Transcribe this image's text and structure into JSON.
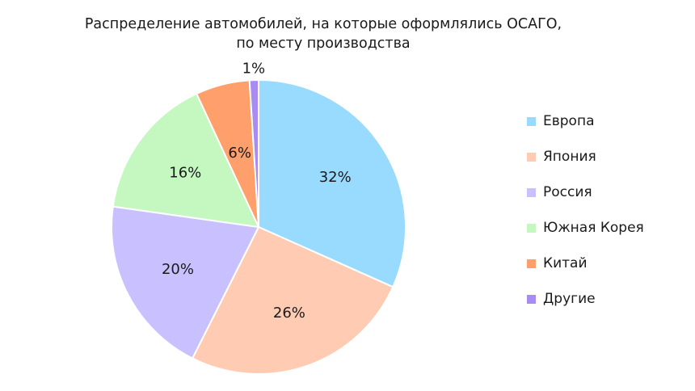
{
  "title_line1": "Распределение автомобилей, на которые оформлялись ОСАГО,",
  "title_line2": "по месту производства",
  "chart_data": {
    "type": "pie",
    "title": "Распределение автомобилей, на которые оформлялись ОСАГО, по месту производства",
    "legend_position": "right",
    "slices": [
      {
        "label": "Европа",
        "value": 32,
        "value_label": "32%",
        "color": "#99daff"
      },
      {
        "label": "Япония",
        "value": 26,
        "value_label": "26%",
        "color": "#ffcbb2"
      },
      {
        "label": "Россия",
        "value": 20,
        "value_label": "20%",
        "color": "#c9c1ff"
      },
      {
        "label": "Южная Корея",
        "value": 16,
        "value_label": "16%",
        "color": "#c4f8c0"
      },
      {
        "label": "Китай",
        "value": 6,
        "value_label": "6%",
        "color": "#ff9f6b"
      },
      {
        "label": "Другие",
        "value": 1,
        "value_label": "1%",
        "color": "#a98cf2"
      }
    ]
  }
}
